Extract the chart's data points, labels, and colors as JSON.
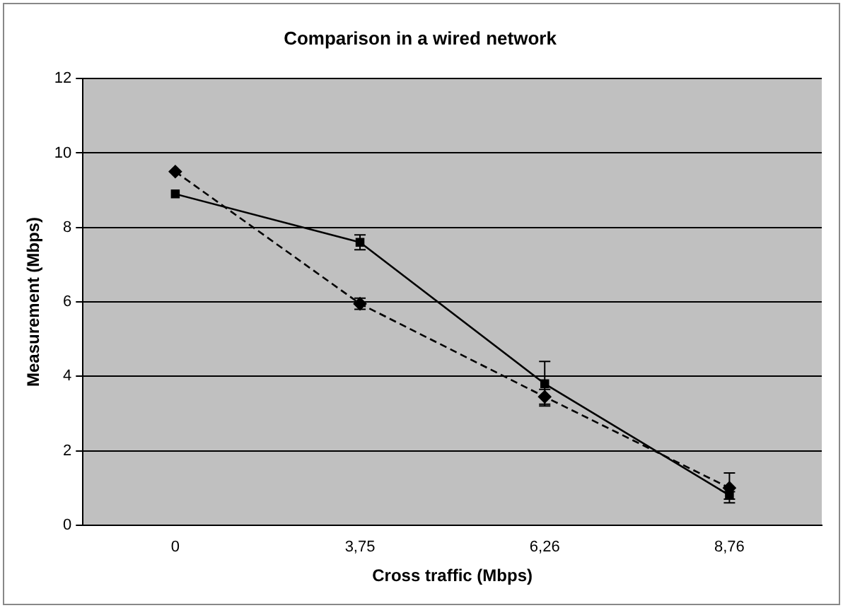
{
  "chart_data": {
    "type": "line",
    "title": "Comparison in a wired network",
    "xlabel": "Cross traffic (Mbps)",
    "ylabel": "Measurement (Mbps)",
    "categories": [
      "0",
      "3,75",
      "6,26",
      "8,76"
    ],
    "series": [
      {
        "color": "#000000",
        "marker": "square",
        "line_style": "solid",
        "values": [
          8.9,
          7.6,
          3.8,
          0.8
        ],
        "errors": [
          null,
          0.2,
          0.6,
          0.1
        ]
      },
      {
        "color": "#000000",
        "marker": "diamond",
        "line_style": "dashed",
        "values": [
          9.5,
          5.95,
          3.45,
          1.0
        ],
        "errors": [
          null,
          0.15,
          0.2,
          0.4
        ]
      }
    ],
    "ylim": [
      0,
      12
    ],
    "yticks": [
      0,
      2,
      4,
      6,
      8,
      10,
      12
    ],
    "grid": "y",
    "legend": false
  }
}
